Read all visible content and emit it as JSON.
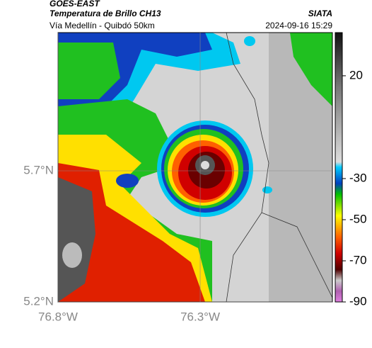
{
  "header": {
    "product": "GOES-EAST",
    "title": "Temperatura de Brillo CH13",
    "source": "SIATA",
    "subtitle": "Vía Medellín - Quibdó 50km",
    "timestamp": "2024-09-16 15:29"
  },
  "map": {
    "xlim": [
      -76.8,
      -75.835
    ],
    "ylim": [
      5.2,
      6.227
    ],
    "xticks": [
      {
        "value": -76.8,
        "label": "76.8°W"
      },
      {
        "value": -76.3,
        "label": "76.3°W"
      }
    ],
    "yticks": [
      {
        "value": 5.2,
        "label": "5.2°N"
      },
      {
        "value": 5.7,
        "label": "5.7°N"
      }
    ],
    "grid": true
  },
  "colorbar": {
    "lim": [
      41,
      -90
    ],
    "ticks": [
      20,
      -30,
      -50,
      -70,
      -90
    ]
  }
}
